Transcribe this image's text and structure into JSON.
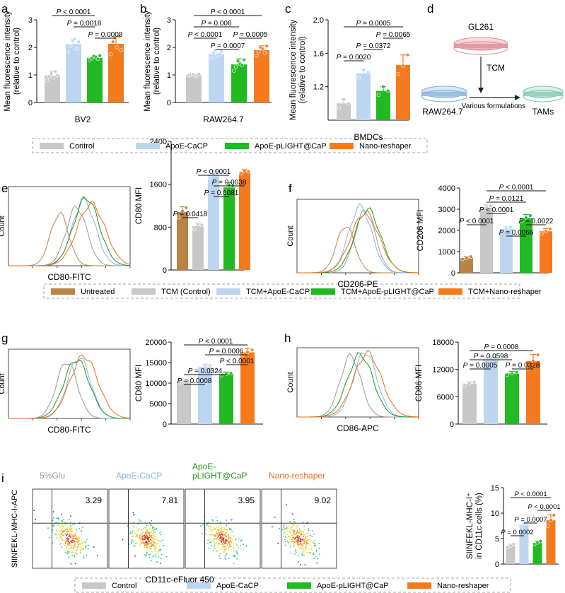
{
  "colors": {
    "gray": "#c8c8c8",
    "blue": "#bcd6f2",
    "green": "#22b922",
    "orange": "#f57a1e",
    "brown": "#b98546",
    "sample_gray": "#9a9a9a",
    "sample_blue": "#80b6e8",
    "sample_green": "#1a9a1a",
    "sample_orange": "#f26a16"
  },
  "legends": {
    "top": [
      "Control",
      "ApoE-CaCP",
      "ApoE-pLIGHT@CaP",
      "Nano-reshaper"
    ],
    "middle": [
      "Untreated",
      "TCM (Control)",
      "TCM+ApoE-CaCP",
      "TCM+ApoE-pLIGHT@CaP",
      "TCM+Nano-reshaper"
    ],
    "bottom": [
      "Control",
      "ApoE-CaCP",
      "ApoE-pLIGHT@CaP",
      "Nano-reshaper"
    ]
  },
  "diagram_d": {
    "letter": "d",
    "source": "GL261",
    "medium": "TCM",
    "cells": "RAW264.7",
    "arrow_label": "Various formulations",
    "product": "TAMs"
  },
  "histograms": [
    {
      "letter": "e",
      "xlabel": "CD80-FITC",
      "ylabel": "Count"
    },
    {
      "letter": "f",
      "xlabel": "CD206-PE",
      "ylabel": "Count"
    },
    {
      "letter": "g",
      "xlabel": "CD80-FITC",
      "ylabel": "Count"
    },
    {
      "letter": "h",
      "xlabel": "CD86-APC",
      "ylabel": "Count"
    }
  ],
  "flow_i": {
    "letter": "i",
    "ylabel": "SIINFEKL-MHC-I-APC",
    "xlabel": "CD11c-eFluor 450",
    "samples": [
      "5%Glu",
      "ApoE-CaCP",
      "ApoE-pLIGHT@CaP",
      "Nano-reshaper"
    ],
    "values": [
      "3.29",
      "7.81",
      "3.95",
      "9.02"
    ]
  },
  "chart_data": [
    {
      "id": "a",
      "letter": "a",
      "type": "bar",
      "categories": [
        "Control",
        "ApoE-CaCP",
        "ApoE-pLIGHT@CaP",
        "Nano-reshaper"
      ],
      "values": [
        0.98,
        2.12,
        1.62,
        2.13
      ],
      "errors": [
        0.15,
        0.18,
        0.07,
        0.27
      ],
      "colorKeys": [
        "gray",
        "blue",
        "green",
        "orange"
      ],
      "ylabel": [
        "Mean fluorescence intensity",
        "(relative to control)"
      ],
      "xlabel": "BV2",
      "ylim": [
        0,
        3
      ],
      "ticks": [
        "0",
        "1",
        "2",
        "3"
      ],
      "tickValues": [
        0,
        1,
        2,
        3
      ],
      "points": [
        [
          0.8,
          0.95,
          1.05,
          0.9,
          1.12,
          0.98
        ],
        [
          1.82,
          2.05,
          2.25,
          2.3,
          1.95,
          2.2
        ],
        [
          1.55,
          1.6,
          1.68,
          1.65,
          1.58,
          1.7
        ],
        [
          1.75,
          2.2,
          2.35,
          2.0,
          2.4,
          1.9
        ]
      ],
      "comparisons": [
        {
          "a": 0,
          "b": 2,
          "label": "P < 0.0001"
        },
        {
          "a": 1,
          "b": 2,
          "label": "P = 0.0018"
        },
        {
          "a": 2,
          "b": 3,
          "label": "P = 0.0008"
        }
      ]
    },
    {
      "id": "b",
      "letter": "b",
      "type": "bar",
      "categories": [
        "Control",
        "ApoE-CaCP",
        "ApoE-pLIGHT@CaP",
        "Nano-reshaper"
      ],
      "values": [
        1.0,
        1.75,
        1.38,
        1.9
      ],
      "errors": [
        0.03,
        0.17,
        0.2,
        0.16
      ],
      "colorKeys": [
        "gray",
        "blue",
        "green",
        "orange"
      ],
      "ylabel": [
        "Mean fluorescence intensity",
        "(relative to control)"
      ],
      "xlabel": "RAW264.7",
      "ylim": [
        0,
        3
      ],
      "ticks": [
        "0",
        "1",
        "2",
        "3"
      ],
      "tickValues": [
        0,
        1,
        2,
        3
      ],
      "points": [
        [
          0.98,
          1.0,
          1.02,
          1.0,
          0.97,
          1.03
        ],
        [
          1.6,
          1.8,
          1.9,
          1.7,
          1.75,
          1.85
        ],
        [
          1.15,
          1.3,
          1.5,
          1.4,
          1.35,
          1.55
        ],
        [
          1.7,
          1.85,
          2.0,
          1.95,
          1.8,
          2.05
        ]
      ],
      "comparisons": [
        {
          "a": 0,
          "b": 3,
          "label": "P < 0.0001"
        },
        {
          "a": 0,
          "b": 2,
          "label": "P = 0.006"
        },
        {
          "a": 0,
          "b": 1,
          "label": "P < 0.0001"
        },
        {
          "a": 2,
          "b": 3,
          "label": "P = 0.0005"
        },
        {
          "a": 1,
          "b": 2,
          "label": "P = 0.0007"
        }
      ]
    },
    {
      "id": "c",
      "letter": "c",
      "type": "bar",
      "categories": [
        "Control",
        "ApoE-CaCP",
        "ApoE-pLIGHT@CaP",
        "Nano-reshaper"
      ],
      "values": [
        1.0,
        1.36,
        1.15,
        1.46
      ],
      "errors": [
        0.05,
        0.05,
        0.05,
        0.12
      ],
      "colorKeys": [
        "gray",
        "blue",
        "green",
        "orange"
      ],
      "ylabel": [
        "Mean fluorescence intensity",
        "(relative to control)"
      ],
      "xlabel": "BMDCs",
      "ylim": [
        0.8,
        2.0
      ],
      "ticks": [
        "1.2",
        "1.6",
        "2.0"
      ],
      "tickValues": [
        1.2,
        1.6,
        2.0
      ],
      "points": [
        [
          0.95,
          1.05,
          1.0
        ],
        [
          1.31,
          1.4,
          1.37
        ],
        [
          1.1,
          1.2,
          1.15
        ],
        [
          1.35,
          1.45,
          1.58
        ]
      ],
      "comparisons": [
        {
          "a": 0,
          "b": 3,
          "label": "P = 0.0005"
        },
        {
          "a": 2,
          "b": 3,
          "label": "P = 0.0065"
        },
        {
          "a": 1,
          "b": 2,
          "label": "P = 0.0372"
        },
        {
          "a": 0,
          "b": 1,
          "label": "P = 0.0020"
        }
      ]
    },
    {
      "id": "e",
      "type": "bar",
      "categories": [
        "Untreated",
        "TCM (Control)",
        "TCM+ApoE-CaCP",
        "TCM+ApoE-pLIGHT@CaP",
        "TCM+Nano-reshaper"
      ],
      "values": [
        1080,
        820,
        1780,
        1540,
        1830
      ],
      "errors": [
        100,
        60,
        70,
        90,
        50
      ],
      "colorKeys": [
        "brown",
        "gray",
        "blue",
        "green",
        "orange"
      ],
      "ylabel": [
        "CD80 MFI"
      ],
      "ylim": [
        0,
        2400
      ],
      "ticks": [
        "0",
        "800",
        "1600",
        "2400"
      ],
      "tickValues": [
        0,
        800,
        1600,
        2400
      ],
      "points": [
        [
          980,
          1100,
          1160
        ],
        [
          760,
          850,
          840
        ],
        [
          1720,
          1790,
          1830
        ],
        [
          1460,
          1580,
          1570
        ],
        [
          1800,
          1850,
          1840
        ]
      ],
      "comparisons": [
        {
          "a": 1,
          "b": 3,
          "label": "P < 0.0001"
        },
        {
          "a": 2,
          "b": 4,
          "label": "P = 0.0038",
          "bracket": "split"
        },
        {
          "a": 2,
          "b": 3,
          "label": "P = 0.0081"
        },
        {
          "a": 0,
          "b": 1,
          "label": "P = 0.0418"
        }
      ]
    },
    {
      "id": "f",
      "type": "bar",
      "categories": [
        "Untreated",
        "TCM (Control)",
        "TCM+ApoE-CaCP",
        "TCM+ApoE-pLIGHT@CaP",
        "TCM+Nano-reshaper"
      ],
      "values": [
        700,
        3080,
        2060,
        2580,
        1960
      ],
      "errors": [
        70,
        120,
        110,
        170,
        130
      ],
      "colorKeys": [
        "brown",
        "gray",
        "blue",
        "green",
        "orange"
      ],
      "ylabel": [
        "CD206 MFI"
      ],
      "ylim": [
        0,
        4000
      ],
      "ticks": [
        "0",
        "1000",
        "2000",
        "3000",
        "4000"
      ],
      "tickValues": [
        0,
        1000,
        2000,
        3000,
        4000
      ],
      "points": [
        [
          640,
          700,
          760
        ],
        [
          3000,
          3080,
          3160
        ],
        [
          1960,
          2060,
          2150
        ],
        [
          2450,
          2600,
          2700
        ],
        [
          1850,
          1950,
          2070
        ]
      ],
      "comparisons": [
        {
          "a": 1,
          "b": 4,
          "label": "P < 0.0001"
        },
        {
          "a": 1,
          "b": 3,
          "label": "P = 0.0121"
        },
        {
          "a": 1,
          "b": 2,
          "label": "P < 0.0001"
        },
        {
          "a": 0,
          "b": 1,
          "label": "P < 0.0001"
        },
        {
          "a": 3,
          "b": 4,
          "label": "P = 0.0022"
        },
        {
          "a": 2,
          "b": 3,
          "label": "P = 0.0066"
        }
      ]
    },
    {
      "id": "g",
      "type": "bar",
      "categories": [
        "Control",
        "ApoE-CaCP",
        "ApoE-pLIGHT@CaP",
        "Nano-reshaper"
      ],
      "values": [
        10300,
        14000,
        12200,
        17500
      ],
      "errors": [
        300,
        600,
        500,
        1000
      ],
      "colorKeys": [
        "gray",
        "blue",
        "green",
        "orange"
      ],
      "ylabel": [
        "CD80 MFI"
      ],
      "ylim": [
        0,
        20000
      ],
      "ticks": [
        "0",
        "5000",
        "10000",
        "15000",
        "20000"
      ],
      "tickValues": [
        0,
        5000,
        10000,
        15000,
        20000
      ],
      "points": [
        [
          10100,
          10350,
          10450
        ],
        [
          13600,
          14100,
          14300
        ],
        [
          11900,
          12300,
          12400
        ],
        [
          16800,
          17600,
          18100
        ]
      ],
      "comparisons": [
        {
          "a": 0,
          "b": 3,
          "label": "P < 0.0001"
        },
        {
          "a": 1,
          "b": 3,
          "label": "P = 0.0006"
        },
        {
          "a": 2,
          "b": 3,
          "label": "P < 0.0001"
        },
        {
          "a": 0,
          "b": 2,
          "label": "P = 0.0324"
        },
        {
          "a": 0,
          "b": 1,
          "label": "P = 0.0008"
        }
      ]
    },
    {
      "id": "h",
      "type": "bar",
      "categories": [
        "Control",
        "ApoE-CaCP",
        "ApoE-pLIGHT@CaP",
        "Nano-reshaper"
      ],
      "values": [
        8900,
        14100,
        11100,
        13800
      ],
      "errors": [
        400,
        700,
        500,
        1500
      ],
      "colorKeys": [
        "gray",
        "blue",
        "green",
        "orange"
      ],
      "ylabel": [
        "CD86 MFI"
      ],
      "ylim": [
        0,
        18000
      ],
      "ticks": [
        "0",
        "6000",
        "12000",
        "18000"
      ],
      "tickValues": [
        0,
        6000,
        12000,
        18000
      ],
      "points": [
        [
          8500,
          9000,
          9200
        ],
        [
          13500,
          14200,
          14600
        ],
        [
          10800,
          11100,
          11400
        ],
        [
          12200,
          13900,
          15200
        ]
      ],
      "comparisons": [
        {
          "a": 0,
          "b": 3,
          "label": "P = 0.0008"
        },
        {
          "a": 0,
          "b": 2,
          "label": "P = 0.0598"
        },
        {
          "a": 0,
          "b": 1,
          "label": "P = 0.0005"
        },
        {
          "a": 2,
          "b": 3,
          "label": "P = 0.0328"
        }
      ]
    },
    {
      "id": "i",
      "type": "bar",
      "categories": [
        "Control",
        "ApoE-CaCP",
        "ApoE-pLIGHT@CaP",
        "Nano-reshaper"
      ],
      "values": [
        3.6,
        7.7,
        4.2,
        8.6
      ],
      "errors": [
        0.3,
        0.7,
        0.3,
        1.1
      ],
      "colorKeys": [
        "gray",
        "blue",
        "green",
        "orange"
      ],
      "ylabel": [
        "SIINFEKL-MHC-I⁺",
        "in CD11c cells (%)"
      ],
      "ylim": [
        0,
        15
      ],
      "ticks": [
        "0",
        "5",
        "10",
        "15"
      ],
      "tickValues": [
        0,
        5,
        10,
        15
      ],
      "points": [
        [
          3.3,
          3.6,
          3.9
        ],
        [
          7.0,
          7.9,
          8.2
        ],
        [
          3.9,
          4.2,
          4.5
        ],
        [
          7.5,
          8.6,
          9.6
        ]
      ],
      "comparisons": [
        {
          "a": 0,
          "b": 3,
          "label": "P < 0.0001"
        },
        {
          "a": 2,
          "b": 3,
          "label": "P < 0.0001"
        },
        {
          "a": 1,
          "b": 2,
          "label": "P = 0.0007"
        },
        {
          "a": 0,
          "b": 1,
          "label": "P = 0.0002"
        }
      ]
    }
  ]
}
